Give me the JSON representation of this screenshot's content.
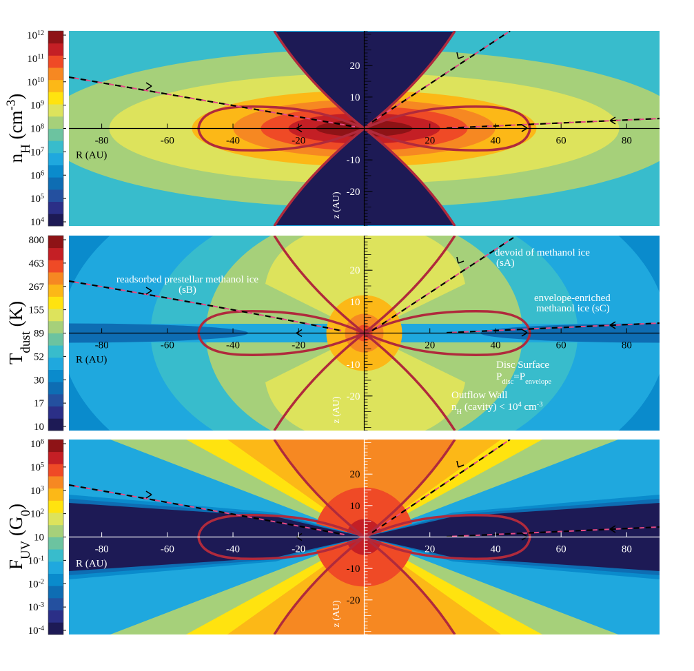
{
  "chart_data": [
    {
      "type": "contour",
      "ylabel": [
        "n",
        "H",
        " (cm",
        "-3",
        ")"
      ],
      "xlabel": "R (AU)",
      "zlabel": "z (AU)",
      "xlim": [
        -90,
        90
      ],
      "xticks": [
        -80,
        -60,
        -40,
        -20,
        20,
        40,
        60,
        80
      ],
      "ylim": [
        -31,
        31
      ],
      "yticks": [
        -20,
        -10,
        10,
        20
      ],
      "colorbar_ticks": [
        {
          "value": 1000000000000,
          "label": [
            "10",
            "12"
          ]
        },
        {
          "value": 100000000000,
          "label": [
            "10",
            "11"
          ]
        },
        {
          "value": 10000000000,
          "label": [
            "10",
            "10"
          ]
        },
        {
          "value": 1000000000,
          "label": [
            "10",
            "9"
          ]
        },
        {
          "value": 100000000,
          "label": [
            "10",
            "8"
          ]
        },
        {
          "value": 10000000,
          "label": [
            "10",
            "7"
          ]
        },
        {
          "value": 1000000,
          "label": [
            "10",
            "6"
          ]
        },
        {
          "value": 100000,
          "label": [
            "10",
            "5"
          ]
        },
        {
          "value": 10000,
          "label": [
            "10",
            "4"
          ]
        }
      ],
      "colors": [
        "#1d1a55",
        "#2b2f87",
        "#24509f",
        "#0e6db3",
        "#0a8bcc",
        "#1fa8de",
        "#38bccc",
        "#6cc3a0",
        "#a6d07a",
        "#dde35c",
        "#ffe30f",
        "#fcb817",
        "#f68822",
        "#ef4a26",
        "#c41f25",
        "#8e1316"
      ]
    },
    {
      "type": "contour",
      "ylabel": [
        "T",
        "dust",
        " (K)"
      ],
      "xlabel": "R (AU)",
      "zlabel": "z (AU)",
      "xlim": [
        -90,
        90
      ],
      "xticks": [
        -80,
        -60,
        -40,
        -20,
        20,
        40,
        60,
        80
      ],
      "ylim": [
        -31,
        31
      ],
      "yticks": [
        -20,
        -10,
        10,
        20
      ],
      "colorbar_ticks": [
        800,
        463,
        267,
        155,
        89,
        52,
        30,
        17,
        10
      ],
      "colors": [
        "#1d1a55",
        "#2b2f87",
        "#24509f",
        "#0e6db3",
        "#0a8bcc",
        "#1fa8de",
        "#38bccc",
        "#6cc3a0",
        "#a6d07a",
        "#dde35c",
        "#ffe30f",
        "#fcb817",
        "#f68822",
        "#ef4a26",
        "#c41f25",
        "#8e1316"
      ],
      "annotations": {
        "sB": [
          "readsorbed prestellar methanol ice",
          "(sB)"
        ],
        "sA": [
          "devoid of methanol ice",
          "(sA)"
        ],
        "sC": [
          "envelope-enriched",
          "methanol ice (sC)"
        ],
        "disc": [
          "Disc Surface",
          "P",
          "disc",
          "=P",
          "envelope"
        ],
        "wall": [
          "Outflow Wall",
          "n",
          "H",
          " (cavity) < 10",
          "4",
          " cm",
          "-3"
        ]
      }
    },
    {
      "type": "contour",
      "ylabel": [
        "F",
        "UV",
        " (G",
        "0",
        ")"
      ],
      "xlabel": "R (AU)",
      "zlabel": "z (AU)",
      "xlim": [
        -90,
        90
      ],
      "xticks": [
        -80,
        -60,
        -40,
        -20,
        20,
        40,
        60,
        80
      ],
      "ylim": [
        -31,
        31
      ],
      "yticks": [
        -20,
        -10,
        10,
        20
      ],
      "colorbar_ticks": [
        {
          "value": 1000000,
          "label": [
            "10",
            "6"
          ]
        },
        {
          "value": 100000,
          "label": [
            "10",
            "5"
          ]
        },
        {
          "value": 1000,
          "label": [
            "10",
            "3"
          ]
        },
        {
          "value": 100,
          "label": [
            "10",
            "2"
          ]
        },
        10,
        {
          "value": 0.1,
          "label": [
            "10",
            "-1"
          ]
        },
        {
          "value": 0.01,
          "label": [
            "10",
            "-2"
          ]
        },
        {
          "value": 0.001,
          "label": [
            "10",
            "-3"
          ]
        },
        {
          "value": 0.0001,
          "label": [
            "10",
            "-4"
          ]
        }
      ],
      "colors": [
        "#1d1a55",
        "#2b2f87",
        "#24509f",
        "#0e6db3",
        "#0a8bcc",
        "#1fa8de",
        "#38bccc",
        "#6cc3a0",
        "#a6d07a",
        "#dde35c",
        "#ffe30f",
        "#fcb817",
        "#f68822",
        "#ef4a26",
        "#c41f25",
        "#8e1316"
      ]
    }
  ]
}
